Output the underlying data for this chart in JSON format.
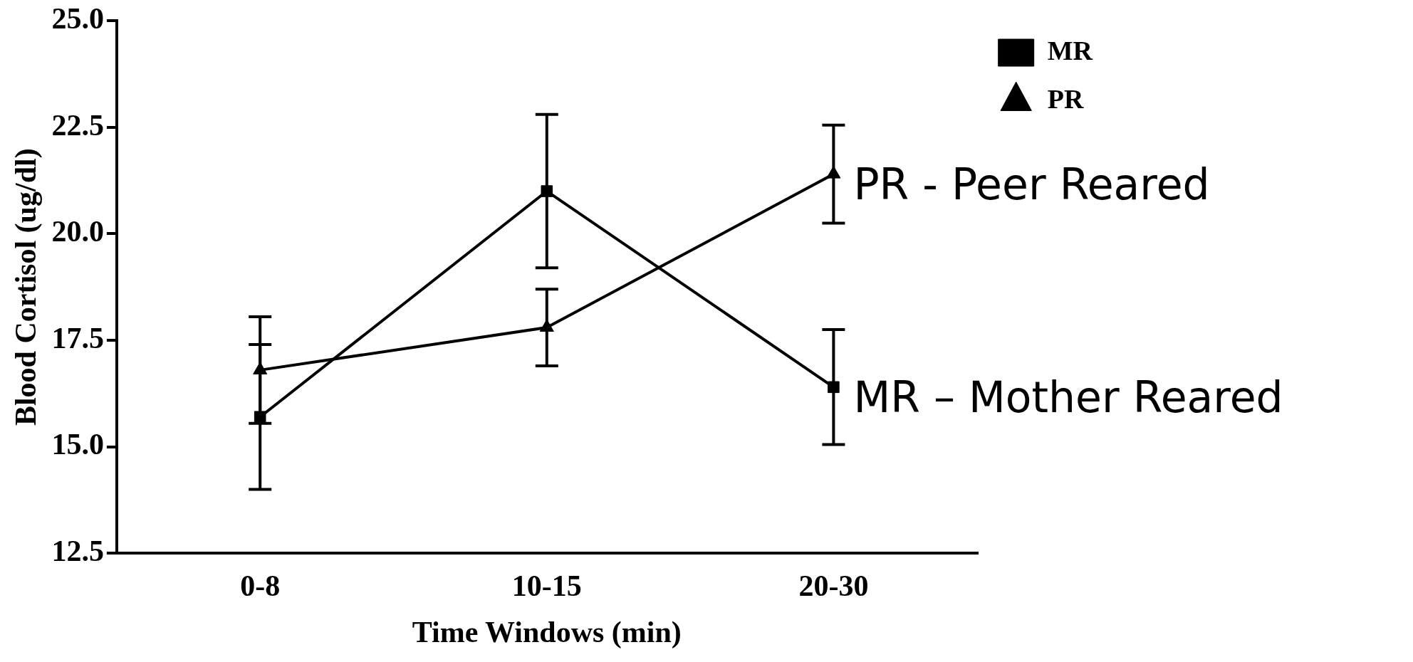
{
  "chart_data": {
    "type": "line",
    "xlabel": "Time Windows (min)",
    "ylabel": "Blood Cortisol (ug/dl)",
    "categories": [
      "0-8",
      "10-15",
      "20-30"
    ],
    "series": [
      {
        "name": "MR",
        "color": "#000000",
        "marker": "square",
        "values": [
          15.7,
          21.0,
          16.4
        ],
        "errors": [
          1.7,
          1.8,
          1.35
        ]
      },
      {
        "name": "PR",
        "color": "#000000",
        "marker": "triangle",
        "values": [
          16.8,
          17.8,
          21.4
        ],
        "errors": [
          1.25,
          0.9,
          1.15
        ]
      }
    ],
    "ylim": [
      12.5,
      25
    ],
    "yticks": [
      {
        "value": 12.5,
        "label": "12.5"
      },
      {
        "value": 15,
        "label": "15.0"
      },
      {
        "value": 17.5,
        "label": "17.5"
      },
      {
        "value": 20,
        "label": "20.0"
      },
      {
        "value": 22.5,
        "label": "22.5"
      },
      {
        "value": 25,
        "label": "25.0"
      }
    ],
    "grid": false,
    "legend": "top right",
    "line_style": "solid",
    "annotations": [
      {
        "text": "PR - Peer Reared",
        "x": "20-30",
        "y": 21.4
      },
      {
        "text": "MR – Mother Reared",
        "x": "20-30",
        "y": 16.4
      }
    ]
  }
}
